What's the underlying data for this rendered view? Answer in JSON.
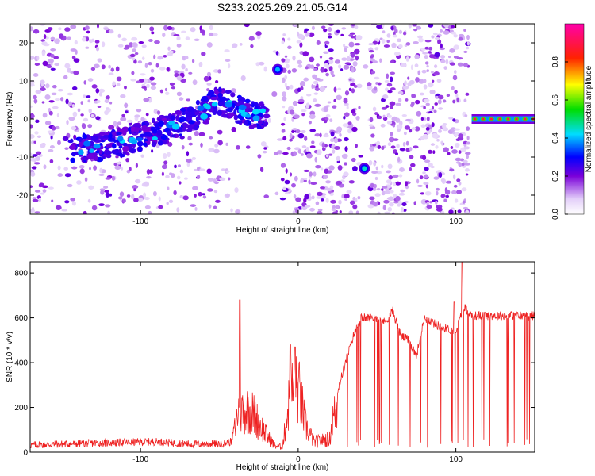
{
  "title": "S233.2025.269.21.05.G14",
  "chart_data": [
    {
      "type": "heatmap",
      "description_of_content": "spectrogram of frequency vs height of straight line",
      "xlabel": "Height of straight line (km)",
      "ylabel": "Frequency (Hz)",
      "xlim": [
        -170,
        150
      ],
      "ylim": [
        -25,
        25
      ],
      "xticks": [
        -100,
        0,
        100
      ],
      "yticks": [
        -20,
        -10,
        0,
        10,
        20
      ],
      "colorbar": {
        "label": "Normalized spectral amplitude",
        "range": [
          0.0,
          1.0
        ],
        "ticks": [
          0.0,
          0.2,
          0.4,
          0.6,
          0.8
        ],
        "tick_labels": [
          "0.0",
          "0.2",
          "0.4",
          "0.6",
          "0.8"
        ]
      },
      "features": [
        {
          "name": "drifting-track",
          "points": [
            [
              -145,
              -8
            ],
            [
              -120,
              -7
            ],
            [
              -100,
              -5
            ],
            [
              -80,
              -2
            ],
            [
              -60,
              2
            ],
            [
              -50,
              5
            ],
            [
              -40,
              3
            ],
            [
              -30,
              1
            ],
            [
              -20,
              1
            ]
          ]
        },
        {
          "name": "peak-high",
          "x": -13,
          "y": 13,
          "amplitude": 0.3
        },
        {
          "name": "peak-low",
          "x": 42,
          "y": -13,
          "amplitude": 0.35
        },
        {
          "name": "steady-line",
          "x_range": [
            110,
            150
          ],
          "y": 0,
          "amplitude": 0.9
        }
      ]
    },
    {
      "type": "line",
      "xlabel": "Height of straight line (km)",
      "ylabel": "SNR (10 * v/v)",
      "xlim": [
        -170,
        150
      ],
      "ylim": [
        0,
        850
      ],
      "xticks": [
        -100,
        0,
        100
      ],
      "yticks": [
        0,
        200,
        400,
        600,
        800
      ],
      "series": [
        {
          "name": "SNR",
          "color": "#ee2222",
          "baseline_segments": [
            [
              -170,
              25
            ],
            [
              -120,
              35
            ],
            [
              -90,
              40
            ],
            [
              -70,
              30
            ],
            [
              -50,
              30
            ],
            [
              -42,
              40
            ],
            [
              -38,
              250
            ],
            [
              -30,
              250
            ],
            [
              -20,
              100
            ],
            [
              -15,
              40
            ],
            [
              -10,
              30
            ],
            [
              -5,
              350
            ],
            [
              0,
              380
            ],
            [
              5,
              150
            ],
            [
              10,
              60
            ],
            [
              20,
              80
            ],
            [
              22,
              200
            ],
            [
              30,
              400
            ],
            [
              35,
              520
            ],
            [
              40,
              600
            ],
            [
              50,
              600
            ],
            [
              55,
              580
            ],
            [
              60,
              630
            ],
            [
              65,
              520
            ],
            [
              70,
              500
            ],
            [
              75,
              430
            ],
            [
              80,
              600
            ],
            [
              90,
              560
            ],
            [
              100,
              540
            ],
            [
              105,
              650
            ],
            [
              110,
              610
            ],
            [
              150,
              610
            ]
          ],
          "spikes": [
            [
              -37,
              680
            ],
            [
              -5,
              480
            ],
            [
              -2,
              470
            ],
            [
              104,
              850
            ],
            [
              99,
              670
            ]
          ]
        }
      ]
    }
  ]
}
